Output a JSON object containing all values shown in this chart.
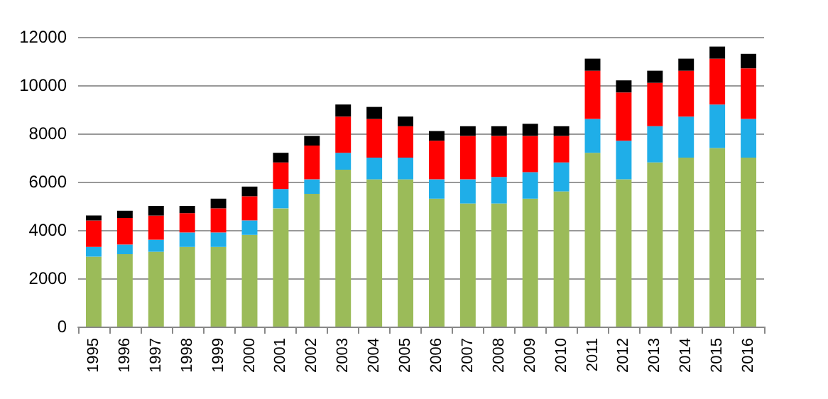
{
  "chart_data": {
    "type": "bar",
    "stacked": true,
    "categories": [
      "1995",
      "1996",
      "1997",
      "1998",
      "1999",
      "2000",
      "2001",
      "2002",
      "2003",
      "2004",
      "2005",
      "2006",
      "2007",
      "2008",
      "2009",
      "2010",
      "2011",
      "2012",
      "2013",
      "2014",
      "2015",
      "2016"
    ],
    "series": [
      {
        "color": "#9bbb59",
        "values": [
          2900,
          3000,
          3100,
          3300,
          3300,
          3800,
          4900,
          5500,
          6500,
          6100,
          6100,
          5300,
          5100,
          5100,
          5300,
          5600,
          7200,
          6100,
          6800,
          7000,
          7400,
          7000
        ]
      },
      {
        "color": "#1faee8",
        "values": [
          400,
          400,
          500,
          600,
          600,
          600,
          800,
          600,
          700,
          900,
          900,
          800,
          1000,
          1100,
          1100,
          1200,
          1400,
          1600,
          1500,
          1700,
          1800,
          1600
        ]
      },
      {
        "color": "#ff0000",
        "values": [
          1100,
          1100,
          1000,
          800,
          1000,
          1000,
          1100,
          1400,
          1500,
          1600,
          1300,
          1600,
          1800,
          1700,
          1500,
          1100,
          2000,
          2000,
          1800,
          1900,
          1900,
          2100
        ]
      },
      {
        "color": "#000000",
        "values": [
          200,
          300,
          400,
          300,
          400,
          400,
          400,
          400,
          500,
          500,
          400,
          400,
          400,
          400,
          500,
          400,
          500,
          500,
          500,
          500,
          500,
          600
        ]
      }
    ],
    "ylim": [
      0,
      12000
    ],
    "yticks": [
      0,
      2000,
      4000,
      6000,
      8000,
      10000,
      12000
    ],
    "grid": "y"
  }
}
